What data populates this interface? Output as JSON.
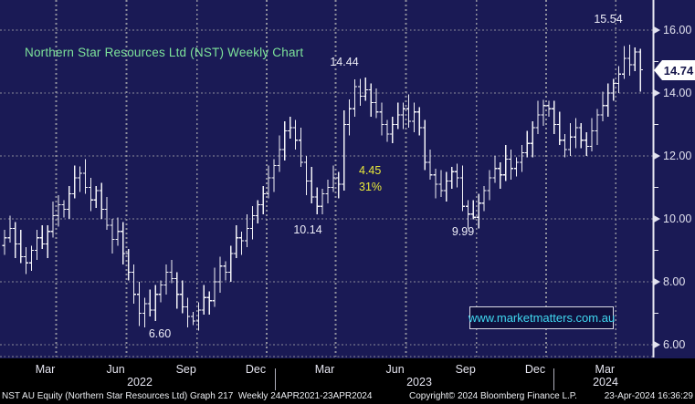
{
  "title": {
    "text": "Northern Star Resources Ltd (NST) Weekly Chart"
  },
  "watermark": {
    "text": "www.marketmatters.com.au"
  },
  "last_price_tag": {
    "value": "14.74"
  },
  "annotations": {
    "high_2024": "15.54",
    "high_2023": "14.44",
    "low_mar_2023": "10.14",
    "low_2022": "6.60",
    "low_oct_2023": "9.99",
    "range_value": "4.45",
    "range_pct": "31%"
  },
  "y_axis": {
    "labels": [
      "16.00",
      "14.00",
      "12.00",
      "10.00",
      "8.00",
      "6.00"
    ],
    "values": [
      16,
      14,
      12,
      10,
      8,
      6
    ],
    "minor_tick_values": [
      15,
      13,
      11,
      9,
      7
    ]
  },
  "x_axis": {
    "quarter_labels": [
      "Mar",
      "Jun",
      "Sep",
      "Dec",
      "Mar",
      "Jun",
      "Sep",
      "Dec",
      "Mar"
    ],
    "year_labels": [
      "2022",
      "2023",
      "2024"
    ]
  },
  "footer": {
    "left": "NST AU Equity (Northern Star Resources Ltd) Graph 217  Weekly 24APR2021-23APR2024",
    "copyright": "Copyright© 2024 Bloomberg Finance L.P.",
    "timestamp": "23-Apr-2024 16:36:29"
  },
  "colors": {
    "background": "#1a1a55",
    "band": "#000000",
    "bars": "#f2f2f7",
    "grid": "#8f8f9c",
    "title_green": "#7de39a",
    "annotation_yellow": "#e9e93a",
    "watermark_cyan": "#40d8f0",
    "axis_text": "#e2e2ef"
  },
  "chart_data": {
    "type": "ohlc",
    "frequency": "weekly",
    "security": "NST AU Equity (Northern Star Resources Ltd)",
    "visible_range": {
      "start": "Jan 2022",
      "end": "23 Apr 2024"
    },
    "ylim": [
      5.6,
      16.9
    ],
    "y_ticks": [
      6,
      8,
      10,
      12,
      14,
      16
    ],
    "grid": true,
    "first_open": 9.15,
    "weekly_closes": [
      9.4,
      9.7,
      9.2,
      8.8,
      8.6,
      9.0,
      9.4,
      9.2,
      9.6,
      10.1,
      10.45,
      10.3,
      10.8,
      11.3,
      11.45,
      11.0,
      10.6,
      10.9,
      10.3,
      9.8,
      9.35,
      9.6,
      8.9,
      8.3,
      7.6,
      7.0,
      7.3,
      7.1,
      7.6,
      7.9,
      8.3,
      8.1,
      7.6,
      7.2,
      6.9,
      6.75,
      7.1,
      7.5,
      7.4,
      8.0,
      8.5,
      8.3,
      8.9,
      9.4,
      9.3,
      9.7,
      10.1,
      10.45,
      10.8,
      11.3,
      11.7,
      12.2,
      12.8,
      12.9,
      12.5,
      11.8,
      11.2,
      10.7,
      10.4,
      10.8,
      11.0,
      11.3,
      11.1,
      13.0,
      13.5,
      14.2,
      13.9,
      14.1,
      13.7,
      13.4,
      13.0,
      12.7,
      13.0,
      13.3,
      13.5,
      13.1,
      13.4,
      12.9,
      11.8,
      11.4,
      11.1,
      10.9,
      11.2,
      11.5,
      11.3,
      10.4,
      10.15,
      10.05,
      10.5,
      10.9,
      11.3,
      11.6,
      11.4,
      11.9,
      11.6,
      11.8,
      12.1,
      12.4,
      12.9,
      13.3,
      13.6,
      13.5,
      13.0,
      12.5,
      12.2,
      12.6,
      12.9,
      12.5,
      12.3,
      12.8,
      13.3,
      13.6,
      14.0,
      14.3,
      14.6,
      15.1,
      14.9,
      15.3,
      14.74
    ],
    "high_pad_cycle": [
      0.25,
      0.4,
      0.2,
      0.45,
      0.3,
      0.15
    ],
    "low_pad_cycle": [
      0.3,
      0.15,
      0.45,
      0.2,
      0.35,
      0.25
    ],
    "overrides": {
      "14": {
        "h": 11.66
      },
      "25": {
        "l": 6.6
      },
      "35": {
        "l": 6.62
      },
      "53": {
        "h": 13.25
      },
      "58": {
        "l": 10.14
      },
      "65": {
        "h": 14.44
      },
      "78": {
        "l": 11.55
      },
      "87": {
        "l": 9.99
      },
      "100": {
        "h": 13.78
      },
      "104": {
        "l": 11.95
      },
      "116": {
        "h": 15.54,
        "l": 14.55
      },
      "117": {
        "h": 15.45
      },
      "118": {
        "h": 15.4,
        "l": 14.05
      }
    },
    "key_levels": {
      "high_apr_2024": 15.54,
      "high_may_2023": 14.44,
      "low_mar_2023": 10.14,
      "low_sep_2022": 6.6,
      "low_oct_2023": 9.99,
      "decline_value": 4.45,
      "decline_pct": "31%",
      "last_price": 14.74
    }
  }
}
